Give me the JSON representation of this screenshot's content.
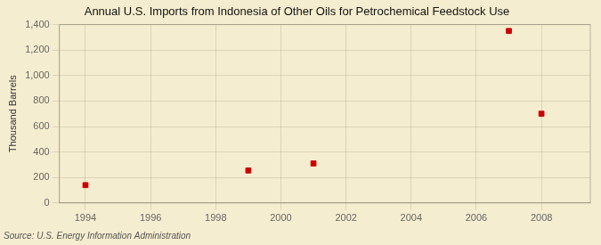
{
  "chart_data": {
    "type": "scatter",
    "title": "Annual U.S. Imports from Indonesia of Other Oils for Petrochemical Feedstock Use",
    "ylabel": "Thousand Barrels",
    "source": "Source: U.S. Energy Information Administration",
    "x": [
      1994,
      1999,
      2001,
      2007,
      2008
    ],
    "values": [
      140,
      255,
      310,
      1350,
      700
    ],
    "color": "#cc0000",
    "marker": "square",
    "xlim": [
      1993.2,
      2009.5
    ],
    "xticks": [
      1994,
      1996,
      1998,
      2000,
      2002,
      2004,
      2006,
      2008
    ],
    "ylim": [
      0,
      1400
    ],
    "yticks": [
      0,
      200,
      400,
      600,
      800,
      {
        "value": 1000,
        "label": "1,000"
      },
      {
        "value": 1200,
        "label": "1,200"
      },
      {
        "value": 1400,
        "label": "1,400"
      }
    ],
    "grid": true
  }
}
